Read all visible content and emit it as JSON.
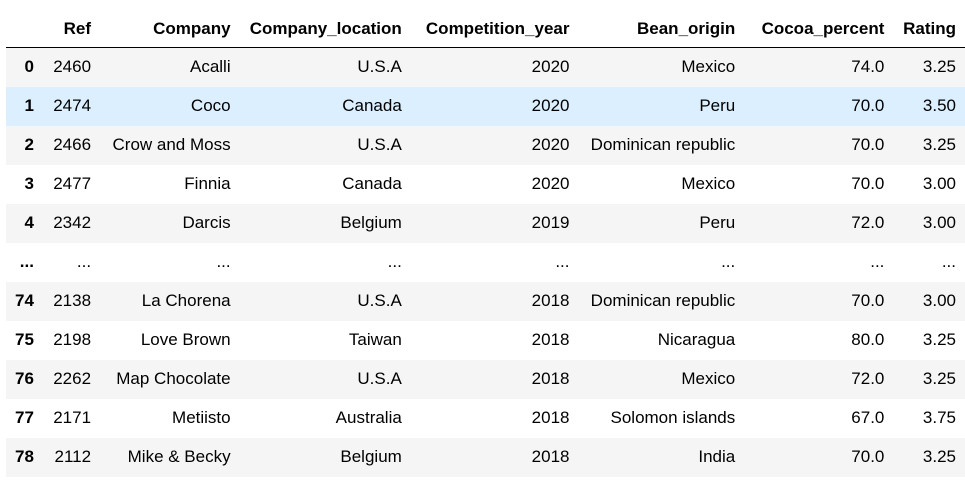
{
  "table": {
    "columns": [
      "",
      "Ref",
      "Company",
      "Company_location",
      "Competition_year",
      "Bean_origin",
      "Cocoa_percent",
      "Rating"
    ],
    "rows": [
      {
        "index": "0",
        "cells": [
          "2460",
          "Acalli",
          "U.S.A",
          "2020",
          "Mexico",
          "74.0",
          "3.25"
        ]
      },
      {
        "index": "1",
        "cells": [
          "2474",
          "Coco",
          "Canada",
          "2020",
          "Peru",
          "70.0",
          "3.50"
        ]
      },
      {
        "index": "2",
        "cells": [
          "2466",
          "Crow and Moss",
          "U.S.A",
          "2020",
          "Dominican republic",
          "70.0",
          "3.25"
        ]
      },
      {
        "index": "3",
        "cells": [
          "2477",
          "Finnia",
          "Canada",
          "2020",
          "Mexico",
          "70.0",
          "3.00"
        ]
      },
      {
        "index": "4",
        "cells": [
          "2342",
          "Darcis",
          "Belgium",
          "2019",
          "Peru",
          "72.0",
          "3.00"
        ]
      },
      {
        "index": "...",
        "cells": [
          "...",
          "...",
          "...",
          "...",
          "...",
          "...",
          "..."
        ]
      },
      {
        "index": "74",
        "cells": [
          "2138",
          "La Chorena",
          "U.S.A",
          "2018",
          "Dominican republic",
          "70.0",
          "3.00"
        ]
      },
      {
        "index": "75",
        "cells": [
          "2198",
          "Love Brown",
          "Taiwan",
          "2018",
          "Nicaragua",
          "80.0",
          "3.25"
        ]
      },
      {
        "index": "76",
        "cells": [
          "2262",
          "Map Chocolate",
          "U.S.A",
          "2018",
          "Mexico",
          "72.0",
          "3.25"
        ]
      },
      {
        "index": "77",
        "cells": [
          "2171",
          "Metiisto",
          "Australia",
          "2018",
          "Solomon islands",
          "67.0",
          "3.75"
        ]
      },
      {
        "index": "78",
        "cells": [
          "2112",
          "Mike & Becky",
          "Belgium",
          "2018",
          "India",
          "70.0",
          "3.25"
        ]
      }
    ],
    "highlighted_row": 1
  },
  "colors": {
    "stripe": "#f5f5f5",
    "hover": "#dcefff",
    "header_rule": "#000000"
  }
}
